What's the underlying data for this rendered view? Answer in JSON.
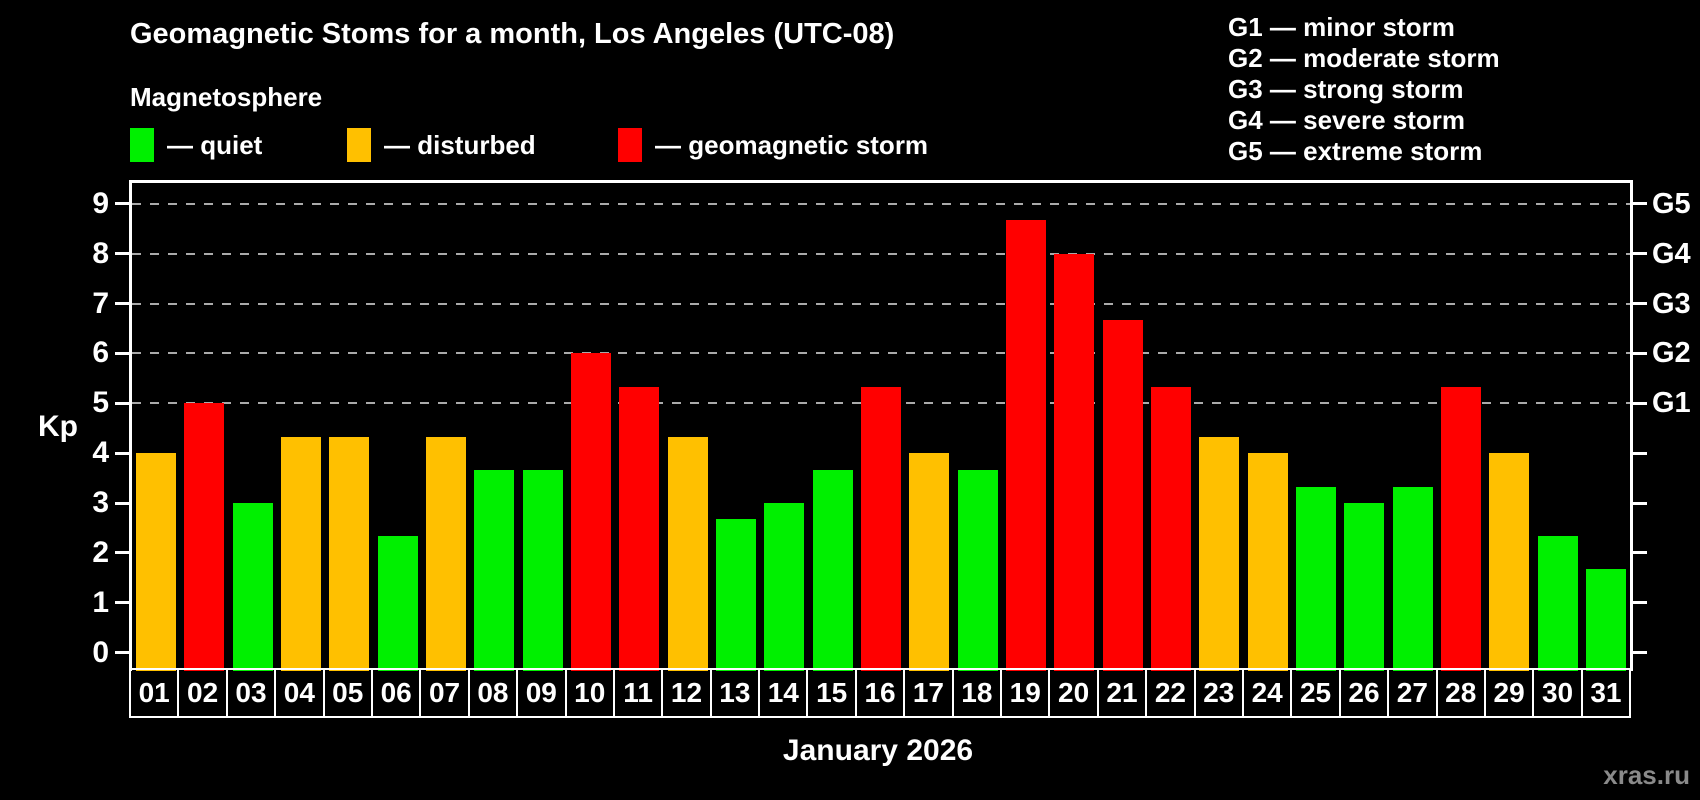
{
  "header": {
    "title": "Geomagnetic Stoms for a month, Los Angeles (UTC-08)",
    "subtitle": "Magnetosphere"
  },
  "legend": {
    "items": [
      {
        "name": "quiet",
        "label": "— quiet",
        "color": "#00f000"
      },
      {
        "name": "disturbed",
        "label": "— disturbed",
        "color": "#ffc000"
      },
      {
        "name": "storm",
        "label": "— geomagnetic storm",
        "color": "#ff0000"
      }
    ]
  },
  "g_scale": {
    "items": [
      "G1 — minor storm",
      "G2 — moderate storm",
      "G3 — strong storm",
      "G4 — severe storm",
      "G5 — extreme storm"
    ]
  },
  "footer": {
    "watermark": "xras.ru"
  },
  "chart_data": {
    "type": "bar",
    "title": "Geomagnetic Stoms for a month, Los Angeles (UTC-08)",
    "subtitle": "Magnetosphere",
    "xlabel": "January 2026",
    "ylabel": "Kp",
    "ylim": [
      0,
      9
    ],
    "y_ticks": [
      0,
      1,
      2,
      3,
      4,
      5,
      6,
      7,
      8,
      9
    ],
    "gridlines_at": [
      5,
      6,
      7,
      8,
      9
    ],
    "grid": "dashed horizontal at storm levels only",
    "legend_position": "top-left",
    "right_axis_labels": [
      {
        "kp": 5,
        "label": "G1"
      },
      {
        "kp": 6,
        "label": "G2"
      },
      {
        "kp": 7,
        "label": "G3"
      },
      {
        "kp": 8,
        "label": "G4"
      },
      {
        "kp": 9,
        "label": "G5"
      }
    ],
    "categories": [
      "01",
      "02",
      "03",
      "04",
      "05",
      "06",
      "07",
      "08",
      "09",
      "10",
      "11",
      "12",
      "13",
      "14",
      "15",
      "16",
      "17",
      "18",
      "19",
      "20",
      "21",
      "22",
      "23",
      "24",
      "25",
      "26",
      "27",
      "28",
      "29",
      "30",
      "31"
    ],
    "values": [
      4.0,
      5.0,
      3.0,
      4.33,
      4.33,
      2.33,
      4.33,
      3.67,
      3.67,
      6.0,
      5.33,
      4.33,
      2.67,
      3.0,
      3.67,
      5.33,
      4.0,
      3.67,
      8.67,
      8.0,
      6.67,
      5.33,
      4.33,
      4.0,
      3.33,
      3.0,
      3.33,
      5.33,
      4.0,
      2.33,
      1.67
    ],
    "states": [
      "disturbed",
      "storm",
      "quiet",
      "disturbed",
      "disturbed",
      "quiet",
      "disturbed",
      "quiet",
      "quiet",
      "storm",
      "storm",
      "disturbed",
      "quiet",
      "quiet",
      "quiet",
      "storm",
      "disturbed",
      "quiet",
      "storm",
      "storm",
      "storm",
      "storm",
      "disturbed",
      "disturbed",
      "quiet",
      "quiet",
      "quiet",
      "storm",
      "disturbed",
      "quiet",
      "quiet"
    ],
    "state_colors": {
      "quiet": "#00f000",
      "disturbed": "#ffc000",
      "storm": "#ff0000"
    }
  }
}
